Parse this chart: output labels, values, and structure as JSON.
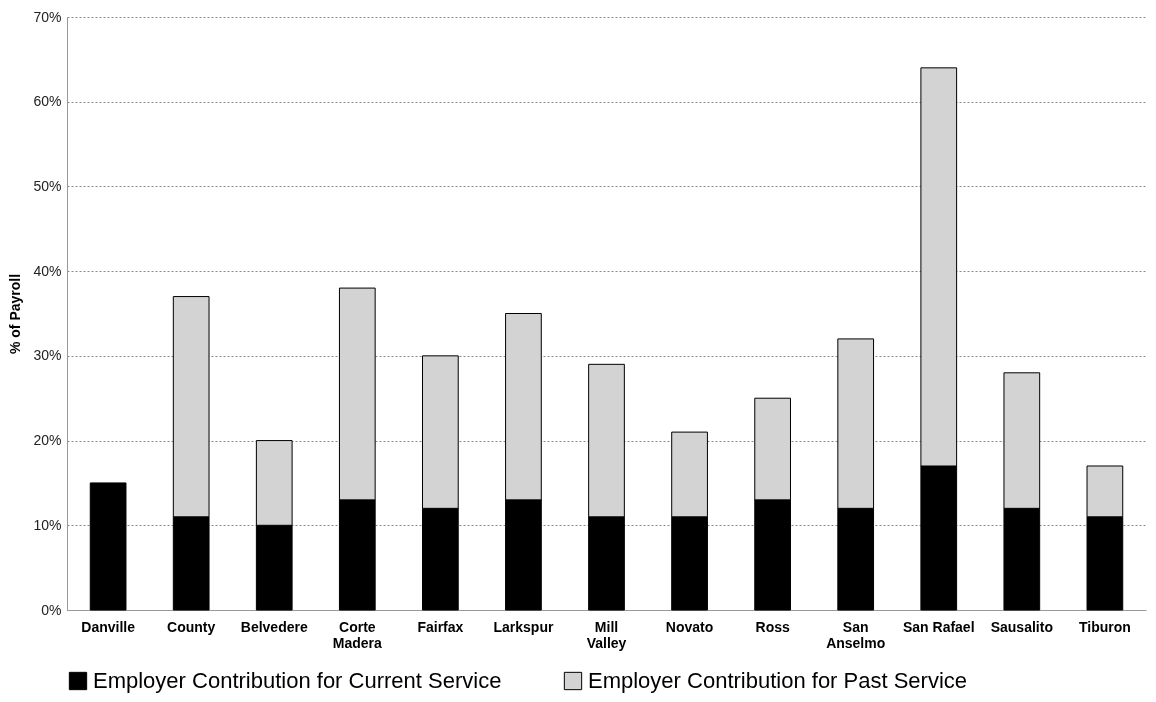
{
  "chart_data": {
    "type": "bar",
    "stacked": true,
    "ylabel": "% of Payroll",
    "categories": [
      "Danville",
      "County",
      "Belvedere",
      "Corte Madera",
      "Fairfax",
      "Larkspur",
      "Mill Valley",
      "Novato",
      "Ross",
      "San Anselmo",
      "San Rafael",
      "Sausalito",
      "Tiburon"
    ],
    "series": [
      {
        "name": "Employer Contribution for Current Service",
        "color": "#000000",
        "values": [
          15,
          11,
          10,
          13,
          12,
          13,
          11,
          11,
          13,
          12,
          17,
          12,
          11
        ]
      },
      {
        "name": "Employer Contribution for Past Service",
        "color": "#d3d3d3",
        "values": [
          null,
          26,
          10,
          25,
          18,
          22,
          18,
          10,
          12,
          20,
          47,
          16,
          6
        ]
      }
    ],
    "ylim": [
      0,
      70
    ],
    "yticks": [
      {
        "value": 0,
        "label": "0%"
      },
      {
        "value": 10,
        "label": "10%"
      },
      {
        "value": 20,
        "label": "20%"
      },
      {
        "value": 30,
        "label": "30%"
      },
      {
        "value": 40,
        "label": "40%"
      },
      {
        "value": 50,
        "label": "50%"
      },
      {
        "value": 60,
        "label": "60%"
      },
      {
        "value": 70,
        "label": "70%"
      }
    ],
    "grid": "y",
    "legend": "bottom"
  }
}
